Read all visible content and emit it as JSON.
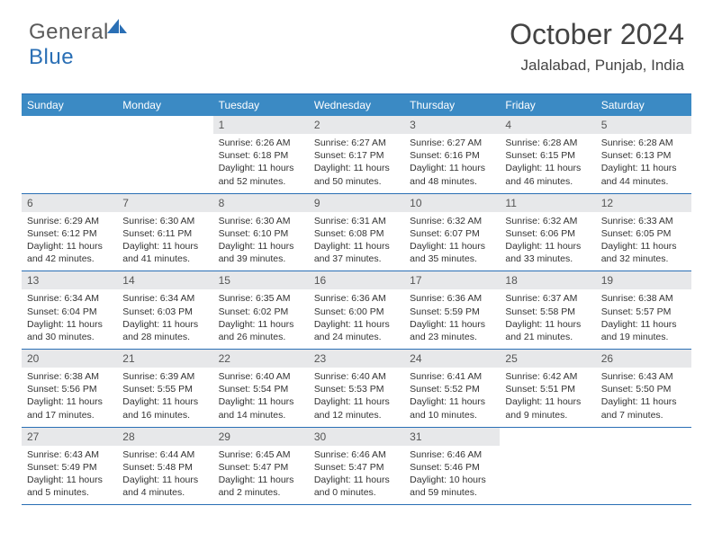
{
  "brand": {
    "part1": "General",
    "part2": "Blue"
  },
  "header": {
    "title": "October 2024",
    "location": "Jalalabad, Punjab, India"
  },
  "style": {
    "accent": "#3b8ac4",
    "border": "#2a6fb5",
    "daynum_bg": "#e7e8ea",
    "text": "#3a3a3a",
    "page_bg": "#ffffff"
  },
  "weekdays": [
    "Sunday",
    "Monday",
    "Tuesday",
    "Wednesday",
    "Thursday",
    "Friday",
    "Saturday"
  ],
  "weeks": [
    [
      {
        "n": "",
        "sr": "",
        "ss": "",
        "dl": ""
      },
      {
        "n": "",
        "sr": "",
        "ss": "",
        "dl": ""
      },
      {
        "n": "1",
        "sr": "6:26 AM",
        "ss": "6:18 PM",
        "dl": "11 hours and 52 minutes."
      },
      {
        "n": "2",
        "sr": "6:27 AM",
        "ss": "6:17 PM",
        "dl": "11 hours and 50 minutes."
      },
      {
        "n": "3",
        "sr": "6:27 AM",
        "ss": "6:16 PM",
        "dl": "11 hours and 48 minutes."
      },
      {
        "n": "4",
        "sr": "6:28 AM",
        "ss": "6:15 PM",
        "dl": "11 hours and 46 minutes."
      },
      {
        "n": "5",
        "sr": "6:28 AM",
        "ss": "6:13 PM",
        "dl": "11 hours and 44 minutes."
      }
    ],
    [
      {
        "n": "6",
        "sr": "6:29 AM",
        "ss": "6:12 PM",
        "dl": "11 hours and 42 minutes."
      },
      {
        "n": "7",
        "sr": "6:30 AM",
        "ss": "6:11 PM",
        "dl": "11 hours and 41 minutes."
      },
      {
        "n": "8",
        "sr": "6:30 AM",
        "ss": "6:10 PM",
        "dl": "11 hours and 39 minutes."
      },
      {
        "n": "9",
        "sr": "6:31 AM",
        "ss": "6:08 PM",
        "dl": "11 hours and 37 minutes."
      },
      {
        "n": "10",
        "sr": "6:32 AM",
        "ss": "6:07 PM",
        "dl": "11 hours and 35 minutes."
      },
      {
        "n": "11",
        "sr": "6:32 AM",
        "ss": "6:06 PM",
        "dl": "11 hours and 33 minutes."
      },
      {
        "n": "12",
        "sr": "6:33 AM",
        "ss": "6:05 PM",
        "dl": "11 hours and 32 minutes."
      }
    ],
    [
      {
        "n": "13",
        "sr": "6:34 AM",
        "ss": "6:04 PM",
        "dl": "11 hours and 30 minutes."
      },
      {
        "n": "14",
        "sr": "6:34 AM",
        "ss": "6:03 PM",
        "dl": "11 hours and 28 minutes."
      },
      {
        "n": "15",
        "sr": "6:35 AM",
        "ss": "6:02 PM",
        "dl": "11 hours and 26 minutes."
      },
      {
        "n": "16",
        "sr": "6:36 AM",
        "ss": "6:00 PM",
        "dl": "11 hours and 24 minutes."
      },
      {
        "n": "17",
        "sr": "6:36 AM",
        "ss": "5:59 PM",
        "dl": "11 hours and 23 minutes."
      },
      {
        "n": "18",
        "sr": "6:37 AM",
        "ss": "5:58 PM",
        "dl": "11 hours and 21 minutes."
      },
      {
        "n": "19",
        "sr": "6:38 AM",
        "ss": "5:57 PM",
        "dl": "11 hours and 19 minutes."
      }
    ],
    [
      {
        "n": "20",
        "sr": "6:38 AM",
        "ss": "5:56 PM",
        "dl": "11 hours and 17 minutes."
      },
      {
        "n": "21",
        "sr": "6:39 AM",
        "ss": "5:55 PM",
        "dl": "11 hours and 16 minutes."
      },
      {
        "n": "22",
        "sr": "6:40 AM",
        "ss": "5:54 PM",
        "dl": "11 hours and 14 minutes."
      },
      {
        "n": "23",
        "sr": "6:40 AM",
        "ss": "5:53 PM",
        "dl": "11 hours and 12 minutes."
      },
      {
        "n": "24",
        "sr": "6:41 AM",
        "ss": "5:52 PM",
        "dl": "11 hours and 10 minutes."
      },
      {
        "n": "25",
        "sr": "6:42 AM",
        "ss": "5:51 PM",
        "dl": "11 hours and 9 minutes."
      },
      {
        "n": "26",
        "sr": "6:43 AM",
        "ss": "5:50 PM",
        "dl": "11 hours and 7 minutes."
      }
    ],
    [
      {
        "n": "27",
        "sr": "6:43 AM",
        "ss": "5:49 PM",
        "dl": "11 hours and 5 minutes."
      },
      {
        "n": "28",
        "sr": "6:44 AM",
        "ss": "5:48 PM",
        "dl": "11 hours and 4 minutes."
      },
      {
        "n": "29",
        "sr": "6:45 AM",
        "ss": "5:47 PM",
        "dl": "11 hours and 2 minutes."
      },
      {
        "n": "30",
        "sr": "6:46 AM",
        "ss": "5:47 PM",
        "dl": "11 hours and 0 minutes."
      },
      {
        "n": "31",
        "sr": "6:46 AM",
        "ss": "5:46 PM",
        "dl": "10 hours and 59 minutes."
      },
      {
        "n": "",
        "sr": "",
        "ss": "",
        "dl": ""
      },
      {
        "n": "",
        "sr": "",
        "ss": "",
        "dl": ""
      }
    ]
  ],
  "labels": {
    "sunrise": "Sunrise: ",
    "sunset": "Sunset: ",
    "daylight": "Daylight: "
  }
}
